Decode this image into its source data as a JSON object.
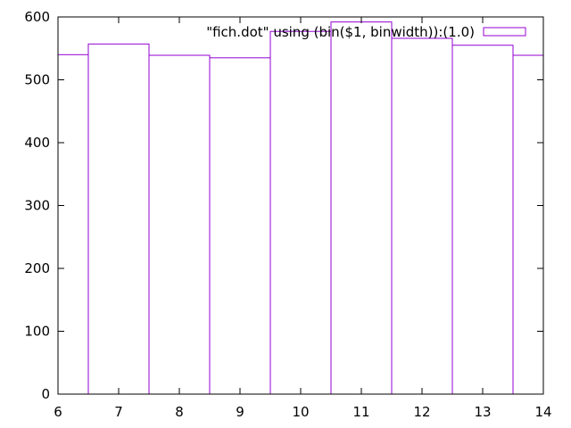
{
  "chart_data": {
    "type": "bar",
    "title": "",
    "xlabel": "",
    "ylabel": "",
    "xlim": [
      6,
      14
    ],
    "ylim": [
      0,
      600
    ],
    "x_ticks": [
      "6",
      "7",
      "8",
      "9",
      "10",
      "11",
      "12",
      "13",
      "14"
    ],
    "y_ticks": [
      "0",
      "100",
      "200",
      "300",
      "400",
      "500",
      "600"
    ],
    "legend_position": "top-right",
    "grid": false,
    "series": [
      {
        "name": "\"fich.dot\" using (bin($1, binwidth)):(1.0)",
        "color": "#9400d3",
        "bin_width": 1,
        "bins": [
          {
            "center": 6,
            "value": 540
          },
          {
            "center": 7,
            "value": 557
          },
          {
            "center": 8,
            "value": 539
          },
          {
            "center": 9,
            "value": 535
          },
          {
            "center": 10,
            "value": 577
          },
          {
            "center": 11,
            "value": 592
          },
          {
            "center": 12,
            "value": 566
          },
          {
            "center": 13,
            "value": 555
          },
          {
            "center": 14,
            "value": 539
          }
        ]
      }
    ]
  }
}
